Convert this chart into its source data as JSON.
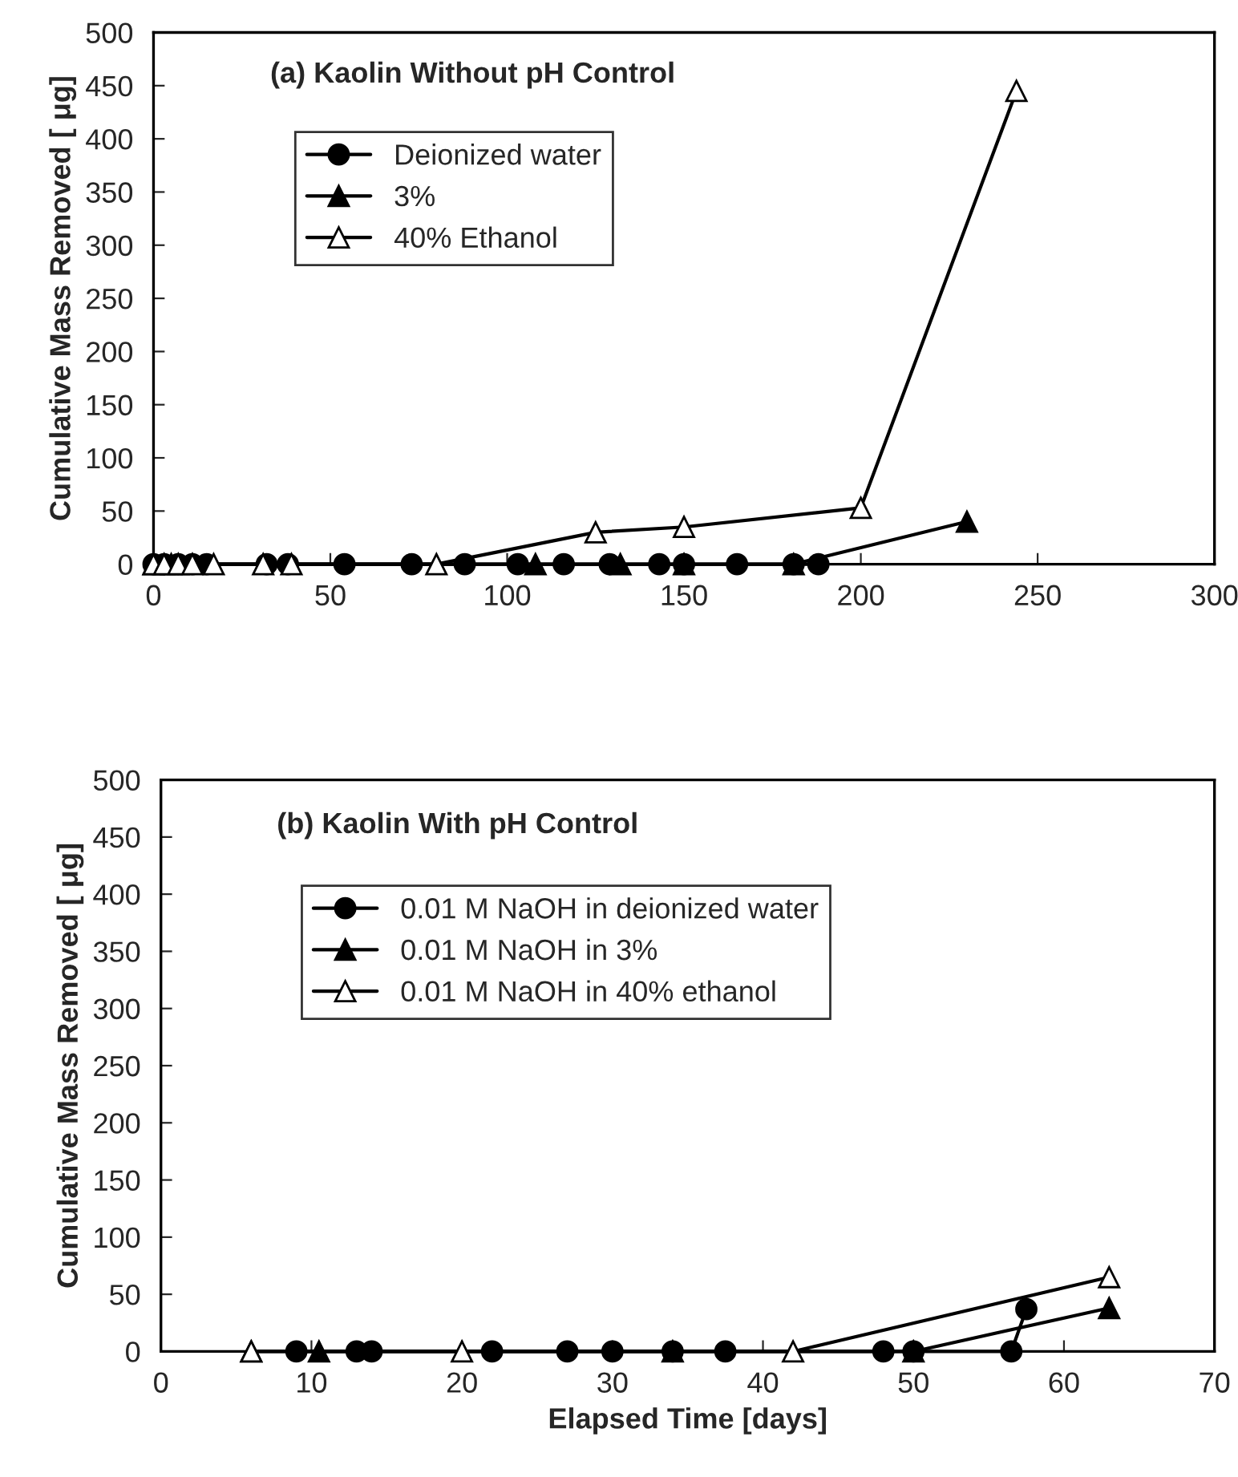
{
  "chart_data": [
    {
      "type": "line",
      "title": "(a) Kaolin Without pH Control",
      "ylabel": "Cumulative Mass Removed [ μg]",
      "xlim": [
        0,
        300
      ],
      "xticks": [
        0,
        50,
        100,
        150,
        200,
        250,
        300
      ],
      "ylim": [
        0,
        500
      ],
      "yticks": [
        0,
        50,
        100,
        150,
        200,
        250,
        300,
        350,
        400,
        450,
        500
      ],
      "grid": false,
      "legend": "top left",
      "tick_labels": "xy",
      "series": [
        {
          "name": "Deionized water",
          "color": "#000000",
          "marker": "circle",
          "x": [
            0,
            3,
            7,
            11,
            15,
            32,
            38,
            54,
            73,
            88,
            103,
            116,
            129,
            143,
            150,
            165,
            181,
            188
          ],
          "values": [
            0,
            0,
            0,
            0,
            0,
            0,
            0,
            0,
            0,
            0,
            0,
            0,
            0,
            0,
            0,
            0,
            0,
            0
          ]
        },
        {
          "name": "3%",
          "color": "#000000",
          "marker": "triangle",
          "x": [
            0,
            5,
            108,
            132,
            150,
            181,
            230
          ],
          "values": [
            0,
            0,
            0,
            0,
            0,
            0,
            40
          ]
        },
        {
          "name": "40% Ethanol",
          "color": "#ffffff",
          "marker": "triangle",
          "x": [
            0,
            3,
            7,
            11,
            17,
            31,
            39,
            80,
            125,
            150,
            200,
            244
          ],
          "values": [
            0,
            0,
            0,
            0,
            0,
            0,
            0,
            0,
            30,
            35,
            53,
            445
          ]
        }
      ]
    },
    {
      "type": "line",
      "title": "(b) Kaolin With pH Control",
      "xlabel": "Elapsed Time [days]",
      "ylabel": "Cumulative Mass Removed [ μg]",
      "xlim": [
        0,
        70
      ],
      "xticks": [
        0,
        10,
        20,
        30,
        40,
        50,
        60,
        70
      ],
      "ylim": [
        0,
        500
      ],
      "yticks": [
        0,
        50,
        100,
        150,
        200,
        250,
        300,
        350,
        400,
        450,
        500
      ],
      "grid": false,
      "legend": "top left",
      "series": [
        {
          "name": "0.01 M NaOH in deionized water",
          "color": "#000000",
          "marker": "circle",
          "x": [
            9,
            13,
            14,
            22,
            27,
            30,
            34,
            37.5,
            48,
            50,
            56.5,
            57.5
          ],
          "values": [
            0,
            0,
            0,
            0,
            0,
            0,
            0,
            0,
            0,
            0,
            0,
            37
          ]
        },
        {
          "name": "0.01 M NaOH in 3%",
          "color": "#000000",
          "marker": "triangle",
          "x": [
            6,
            10.5,
            34,
            50,
            63
          ],
          "values": [
            0,
            0,
            0,
            0,
            38
          ]
        },
        {
          "name": "0.01 M NaOH in 40% ethanol",
          "color": "#ffffff",
          "marker": "triangle",
          "x": [
            6,
            20,
            42,
            63
          ],
          "values": [
            0,
            0,
            0,
            65
          ]
        }
      ]
    }
  ]
}
